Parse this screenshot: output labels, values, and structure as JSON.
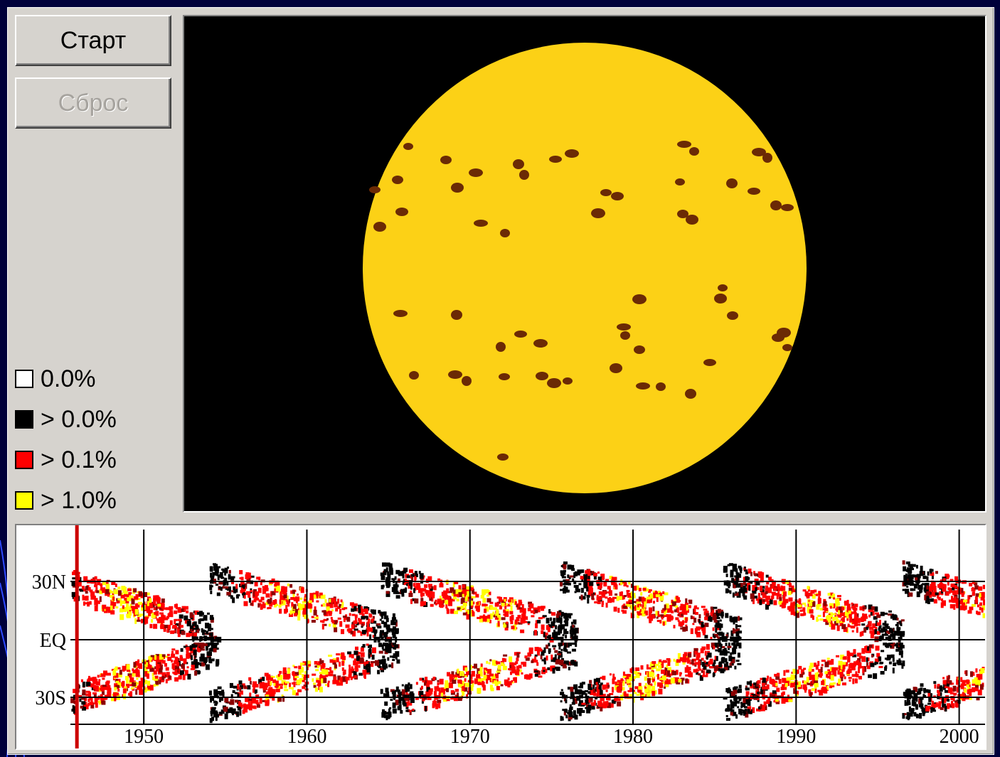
{
  "controls": {
    "start_label": "Старт",
    "reset_label": "Сброс",
    "reset_enabled": false
  },
  "legend": {
    "items": [
      {
        "label": "0.0%",
        "color": "#ffffff"
      },
      {
        "label": "> 0.0%",
        "color": "#000000"
      },
      {
        "label": "> 0.1%",
        "color": "#ff0000"
      },
      {
        "label": "> 1.0%",
        "color": "#ffff00"
      }
    ]
  },
  "sun_view": {
    "disk_color": "#fcd116",
    "spot_color": "#6b2a05",
    "background_color": "#000000"
  },
  "chart_data": {
    "type": "heatmap",
    "title": "",
    "x_ticks": [
      "1950",
      "1960",
      "1970",
      "1980",
      "1990",
      "2000"
    ],
    "x_range": [
      1945.5,
      2001.5
    ],
    "y_ticks": [
      "30N",
      "EQ",
      "30S"
    ],
    "current_time_marker": 1945.9,
    "grid": true,
    "cycles": [
      {
        "start": 1944.0,
        "end": 1954.5
      },
      {
        "start": 1954.0,
        "end": 1965.5
      },
      {
        "start": 1964.5,
        "end": 1976.5
      },
      {
        "start": 1975.5,
        "end": 1986.5
      },
      {
        "start": 1985.5,
        "end": 1996.5
      },
      {
        "start": 1996.5,
        "end": 2008.0
      }
    ],
    "colors": {
      "low": "#000000",
      "mid": "#ff0000",
      "high": "#ffff00",
      "grid": "#000000",
      "marker": "#cc0000"
    }
  }
}
